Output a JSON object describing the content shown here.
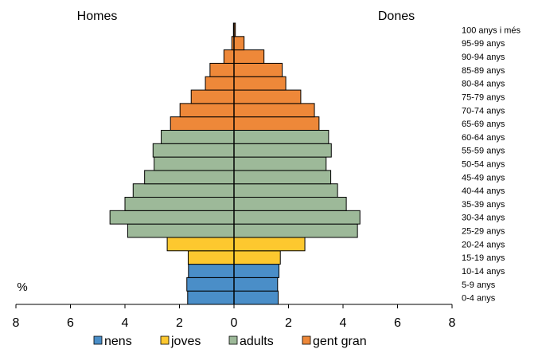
{
  "chart_data": {
    "type": "bar",
    "orientation": "horizontal-pyramid",
    "left_title": "Homes",
    "right_title": "Dones",
    "unit_label": "%",
    "x_range": [
      -8,
      8
    ],
    "x_ticks": [
      "8",
      "6",
      "4",
      "2",
      "0",
      "2",
      "4",
      "6",
      "8"
    ],
    "grid": false,
    "legend_position": "bottom",
    "groups": [
      {
        "key": "nens",
        "name": "nens",
        "color": "#4a8ec8"
      },
      {
        "key": "joves",
        "name": "joves",
        "color": "#fdc82f"
      },
      {
        "key": "adults",
        "name": "adults",
        "color": "#9db999"
      },
      {
        "key": "gent_gran",
        "name": "gent gran",
        "color": "#ee8839"
      }
    ],
    "rows": [
      {
        "age": "0-4 anys",
        "group": "nens",
        "men": 1.7,
        "women": 1.62
      },
      {
        "age": "5-9 anys",
        "group": "nens",
        "men": 1.73,
        "women": 1.6
      },
      {
        "age": "10-14 anys",
        "group": "nens",
        "men": 1.67,
        "women": 1.65
      },
      {
        "age": "15-19 anys",
        "group": "joves",
        "men": 1.68,
        "women": 1.7
      },
      {
        "age": "20-24 anys",
        "group": "joves",
        "men": 2.45,
        "women": 2.6
      },
      {
        "age": "25-29 anys",
        "group": "adults",
        "men": 3.9,
        "women": 4.53
      },
      {
        "age": "30-34 anys",
        "group": "adults",
        "men": 4.55,
        "women": 4.62
      },
      {
        "age": "35-39 anys",
        "group": "adults",
        "men": 4.0,
        "women": 4.12
      },
      {
        "age": "40-44 anys",
        "group": "adults",
        "men": 3.7,
        "women": 3.8
      },
      {
        "age": "45-49 anys",
        "group": "adults",
        "men": 3.28,
        "women": 3.55
      },
      {
        "age": "50-54 anys",
        "group": "adults",
        "men": 2.93,
        "women": 3.38
      },
      {
        "age": "55-59 anys",
        "group": "adults",
        "men": 2.97,
        "women": 3.57
      },
      {
        "age": "60-64 anys",
        "group": "adults",
        "men": 2.67,
        "women": 3.47
      },
      {
        "age": "65-69 anys",
        "group": "gent_gran",
        "men": 2.33,
        "women": 3.12
      },
      {
        "age": "70-74 anys",
        "group": "gent_gran",
        "men": 1.98,
        "women": 2.95
      },
      {
        "age": "75-79 anys",
        "group": "gent_gran",
        "men": 1.57,
        "women": 2.45
      },
      {
        "age": "80-84 anys",
        "group": "gent_gran",
        "men": 1.05,
        "women": 1.9
      },
      {
        "age": "85-89 anys",
        "group": "gent_gran",
        "men": 0.88,
        "women": 1.77
      },
      {
        "age": "90-94 anys",
        "group": "gent_gran",
        "men": 0.37,
        "women": 1.1
      },
      {
        "age": "95-99 anys",
        "group": "gent_gran",
        "men": 0.08,
        "women": 0.37
      },
      {
        "age": "100 anys i més",
        "group": "gent_gran",
        "men": 0.02,
        "women": 0.05
      }
    ]
  }
}
